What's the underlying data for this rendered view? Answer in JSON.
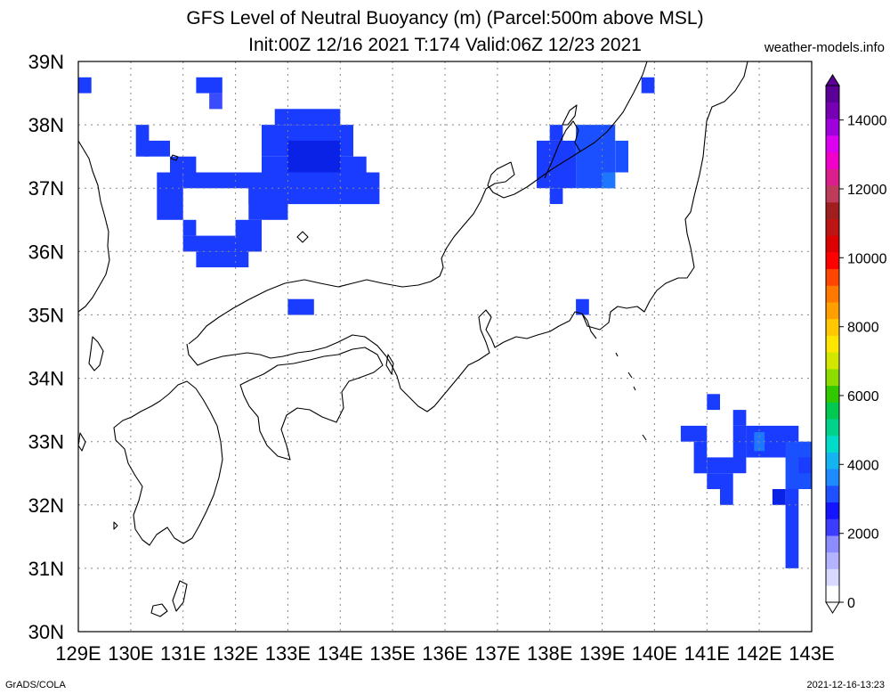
{
  "header": {
    "title_line1": "GFS Level of Neutral Buoyancy (m) (Parcel:500m above MSL)",
    "title_line2": "Init:00Z 12/16 2021 T:174 Valid:06Z 12/23 2021",
    "site": "weather-models.info"
  },
  "footer": {
    "left": "GrADS/COLA",
    "right": "2021-12-16-13:23"
  },
  "map": {
    "lon_range": [
      129,
      143
    ],
    "lat_range": [
      30,
      39
    ],
    "lon_labels": [
      "129E",
      "130E",
      "131E",
      "132E",
      "133E",
      "134E",
      "135E",
      "136E",
      "137E",
      "138E",
      "139E",
      "140E",
      "141E",
      "142E",
      "143E"
    ],
    "lat_labels": [
      "30N",
      "31N",
      "32N",
      "33N",
      "34N",
      "35N",
      "36N",
      "37N",
      "38N"
    ],
    "lat_top_label": "39N",
    "grid": true,
    "cell_deg": 0.25,
    "lnb_cells": [
      {
        "lon": 129.0,
        "lat": 38.5,
        "w": 0.25,
        "h": 0.25,
        "color": "#1a3cff"
      },
      {
        "lon": 131.25,
        "lat": 38.5,
        "w": 0.5,
        "h": 0.25,
        "color": "#1a3cff"
      },
      {
        "lon": 131.5,
        "lat": 38.25,
        "w": 0.25,
        "h": 0.25,
        "color": "#3b4cff"
      },
      {
        "lon": 139.75,
        "lat": 38.5,
        "w": 0.25,
        "h": 0.25,
        "color": "#1a3cff"
      },
      {
        "lon": 130.1,
        "lat": 37.5,
        "w": 0.25,
        "h": 0.5,
        "color": "#1a3cff"
      },
      {
        "lon": 130.25,
        "lat": 37.5,
        "w": 0.5,
        "h": 0.25,
        "color": "#1a3cff"
      },
      {
        "lon": 130.75,
        "lat": 37.25,
        "w": 0.5,
        "h": 0.25,
        "color": "#1a3cff"
      },
      {
        "lon": 130.5,
        "lat": 36.5,
        "w": 0.5,
        "h": 0.75,
        "color": "#1a3cff"
      },
      {
        "lon": 131.0,
        "lat": 37.0,
        "w": 2.25,
        "h": 0.25,
        "color": "#1a3cff"
      },
      {
        "lon": 131.0,
        "lat": 36.25,
        "w": 0.25,
        "h": 0.25,
        "color": "#1a3cff"
      },
      {
        "lon": 131.0,
        "lat": 36.0,
        "w": 1.5,
        "h": 0.25,
        "color": "#1a3cff"
      },
      {
        "lon": 131.25,
        "lat": 35.75,
        "w": 1.0,
        "h": 0.25,
        "color": "#1a3cff"
      },
      {
        "lon": 132.0,
        "lat": 36.0,
        "w": 0.5,
        "h": 0.5,
        "color": "#1a3cff"
      },
      {
        "lon": 132.25,
        "lat": 36.5,
        "w": 0.75,
        "h": 0.5,
        "color": "#1a3cff"
      },
      {
        "lon": 132.25,
        "lat": 36.75,
        "w": 2.5,
        "h": 0.5,
        "color": "#1a3cff"
      },
      {
        "lon": 132.5,
        "lat": 37.5,
        "w": 1.75,
        "h": 0.5,
        "color": "#1a3cff"
      },
      {
        "lon": 132.5,
        "lat": 37.25,
        "w": 2.0,
        "h": 0.25,
        "color": "#1a3cff"
      },
      {
        "lon": 132.75,
        "lat": 38.0,
        "w": 1.25,
        "h": 0.25,
        "color": "#1a3cff"
      },
      {
        "lon": 133.0,
        "lat": 37.25,
        "w": 1.0,
        "h": 0.5,
        "color": "#0a22e6"
      },
      {
        "lon": 133.0,
        "lat": 35.0,
        "w": 0.5,
        "h": 0.25,
        "color": "#1a3cff"
      },
      {
        "lon": 137.75,
        "lat": 37.0,
        "w": 0.75,
        "h": 0.75,
        "color": "#1a3cff"
      },
      {
        "lon": 137.75,
        "lat": 37.25,
        "w": 0.25,
        "h": 0.25,
        "color": "#1a3cff"
      },
      {
        "lon": 138.0,
        "lat": 36.75,
        "w": 0.25,
        "h": 0.25,
        "color": "#1a3cff"
      },
      {
        "lon": 138.0,
        "lat": 37.75,
        "w": 0.25,
        "h": 0.25,
        "color": "#1a3cff"
      },
      {
        "lon": 138.5,
        "lat": 37.0,
        "w": 0.75,
        "h": 1.0,
        "color": "#1a50ff"
      },
      {
        "lon": 139.25,
        "lat": 37.25,
        "w": 0.25,
        "h": 0.5,
        "color": "#1a50ff"
      },
      {
        "lon": 139.0,
        "lat": 37.0,
        "w": 0.25,
        "h": 0.25,
        "color": "#1e78ff"
      },
      {
        "lon": 138.5,
        "lat": 35.0,
        "w": 0.25,
        "h": 0.25,
        "color": "#1a3cff"
      },
      {
        "lon": 141.0,
        "lat": 33.5,
        "w": 0.25,
        "h": 0.25,
        "color": "#1a3cff"
      },
      {
        "lon": 140.5,
        "lat": 33.0,
        "w": 0.5,
        "h": 0.25,
        "color": "#1a3cff"
      },
      {
        "lon": 140.75,
        "lat": 32.5,
        "w": 0.25,
        "h": 0.5,
        "color": "#1a3cff"
      },
      {
        "lon": 141.0,
        "lat": 32.5,
        "w": 0.75,
        "h": 0.25,
        "color": "#1a3cff"
      },
      {
        "lon": 141.0,
        "lat": 32.25,
        "w": 0.5,
        "h": 0.25,
        "color": "#1a3cff"
      },
      {
        "lon": 141.25,
        "lat": 32.0,
        "w": 0.25,
        "h": 0.25,
        "color": "#1a3cff"
      },
      {
        "lon": 141.5,
        "lat": 32.75,
        "w": 0.25,
        "h": 0.5,
        "color": "#1a3cff"
      },
      {
        "lon": 141.5,
        "lat": 33.25,
        "w": 0.25,
        "h": 0.25,
        "color": "#1a3cff"
      },
      {
        "lon": 141.75,
        "lat": 32.75,
        "w": 1.0,
        "h": 0.5,
        "color": "#1a3cff"
      },
      {
        "lon": 141.9,
        "lat": 32.85,
        "w": 0.2,
        "h": 0.3,
        "color": "#1e78ff"
      },
      {
        "lon": 142.5,
        "lat": 32.25,
        "w": 0.5,
        "h": 0.75,
        "color": "#1a50ff"
      },
      {
        "lon": 142.25,
        "lat": 32.0,
        "w": 0.25,
        "h": 0.25,
        "color": "#0a22e6"
      },
      {
        "lon": 142.5,
        "lat": 31.0,
        "w": 0.25,
        "h": 1.25,
        "color": "#1a3cff"
      },
      {
        "lon": 142.75,
        "lat": 32.5,
        "w": 0.25,
        "h": 0.25,
        "color": "#1a3cff"
      }
    ]
  },
  "colorbar": {
    "labels": [
      "0",
      "2000",
      "4000",
      "6000",
      "8000",
      "10000",
      "12000",
      "14000"
    ],
    "colors": [
      "#ffffff",
      "#d9d9ff",
      "#b3b3ff",
      "#8c8cff",
      "#3c3cff",
      "#1414ff",
      "#1e50ff",
      "#1e8cff",
      "#14b4f0",
      "#00dcc8",
      "#00d28c",
      "#00c850",
      "#32c800",
      "#8cdc00",
      "#d2e600",
      "#ffe600",
      "#ffc800",
      "#ffa000",
      "#ff7800",
      "#ff4600",
      "#ff0000",
      "#dc0000",
      "#be1414",
      "#a01e1e",
      "#be3c5a",
      "#dc1e8c",
      "#f000c8",
      "#dc00f0",
      "#a000dc",
      "#7800b4",
      "#5a0096"
    ]
  }
}
